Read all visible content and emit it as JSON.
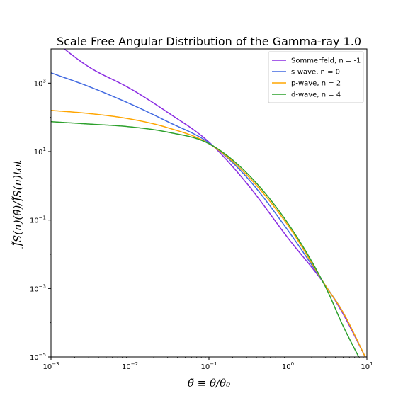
{
  "chart_data": {
    "type": "line",
    "title": "Scale Free Angular Distribution of the Gamma-ray 1.0",
    "xlabel": "θ̃ ≡ θ/θ₀",
    "ylabel": "J̃S(n)(θ̃)/J̃S(n)tot",
    "xscale": "log",
    "yscale": "log",
    "xlim": [
      0.001,
      10
    ],
    "ylim": [
      1e-05,
      10000
    ],
    "grid": false,
    "legend_position": "top-right",
    "x_ticks": [
      {
        "value": 0.001,
        "base": "10",
        "exp": "−3"
      },
      {
        "value": 0.01,
        "base": "10",
        "exp": "−2"
      },
      {
        "value": 0.1,
        "base": "10",
        "exp": "−1"
      },
      {
        "value": 1,
        "base": "10",
        "exp": "0"
      },
      {
        "value": 10,
        "base": "10",
        "exp": "1"
      }
    ],
    "y_ticks": [
      {
        "value": 1e-05,
        "base": "10",
        "exp": "−5"
      },
      {
        "value": 0.001,
        "base": "10",
        "exp": "−3"
      },
      {
        "value": 0.1,
        "base": "10",
        "exp": "−1"
      },
      {
        "value": 10,
        "base": "10",
        "exp": "1"
      },
      {
        "value": 1000,
        "base": "10",
        "exp": "3"
      }
    ],
    "x": [
      0.001,
      0.003,
      0.01,
      0.03,
      0.1,
      0.3,
      1,
      3,
      5,
      10
    ],
    "series": [
      {
        "name": "Sommerfeld, n = -1",
        "color": "#8a2be2",
        "values": [
          20000,
          3000,
          700,
          140,
          19,
          1.2,
          0.03,
          0.0012,
          0.00018,
          8e-06
        ]
      },
      {
        "name": "s-wave, n = 0",
        "color": "#4169e1",
        "values": [
          2000,
          800,
          250,
          75,
          18,
          1.8,
          0.05,
          0.0012,
          0.0002,
          8e-06
        ]
      },
      {
        "name": "p-wave, n = 2",
        "color": "#ffa500",
        "values": [
          160,
          130,
          90,
          50,
          17,
          2.1,
          0.07,
          0.0012,
          0.0002,
          8e-06
        ]
      },
      {
        "name": "d-wave, n = 4",
        "color": "#2ca02c",
        "values": [
          75,
          64,
          53,
          37,
          17,
          2.4,
          0.08,
          0.0011,
          8e-05,
          3.5e-06
        ]
      }
    ]
  }
}
